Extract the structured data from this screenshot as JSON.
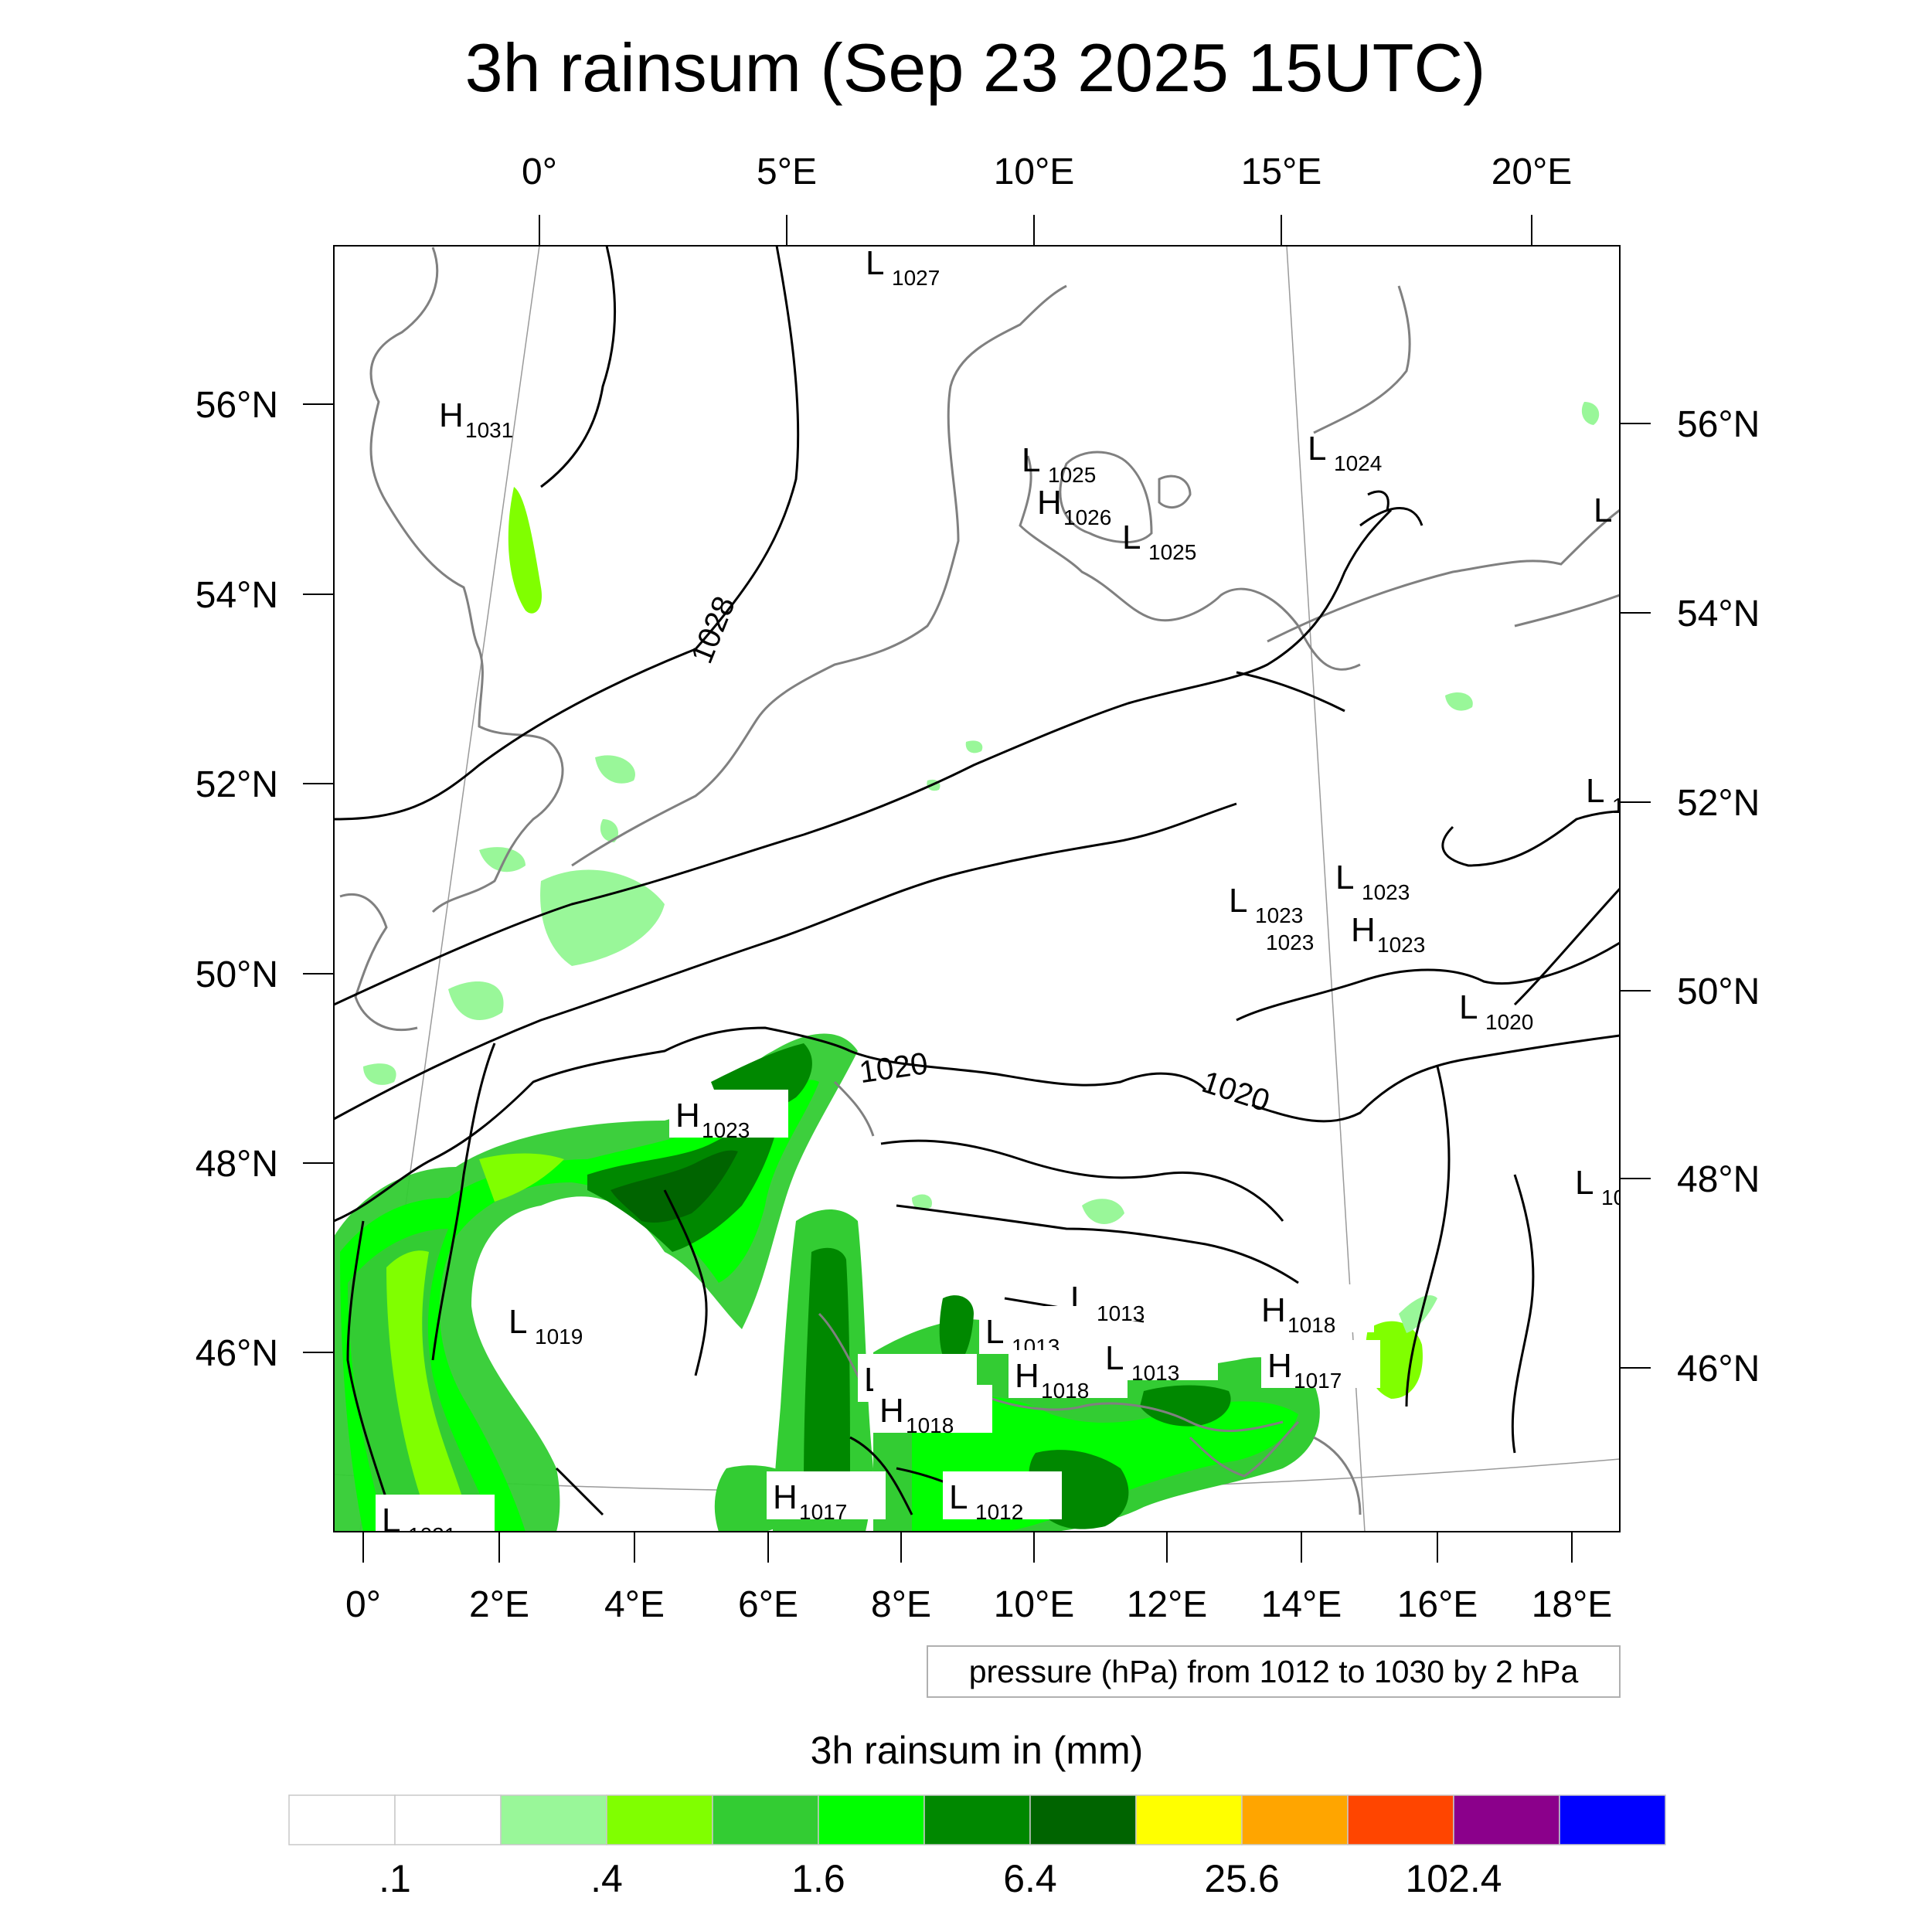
{
  "title": "3h rainsum (Sep 23 2025 15UTC)",
  "top_lon_labels": [
    "0°",
    "5°E",
    "10°E",
    "15°E",
    "20°E"
  ],
  "bottom_lon_labels": [
    "0°",
    "2°E",
    "4°E",
    "6°E",
    "8°E",
    "10°E",
    "12°E",
    "14°E",
    "16°E",
    "18°E"
  ],
  "left_lat_labels": [
    "56°N",
    "54°N",
    "52°N",
    "50°N",
    "48°N",
    "46°N"
  ],
  "right_lat_labels": [
    "56°N",
    "54°N",
    "52°N",
    "50°N",
    "48°N",
    "46°N"
  ],
  "contour_labels": [
    "1028",
    "1020",
    "1020"
  ],
  "pressure_note": "pressure (hPa) from 1012 to 1030 by 2 hPa",
  "colorbar": {
    "title": "3h rainsum in (mm)",
    "colors": [
      "#ffffff",
      "#ffffff",
      "#99f799",
      "#80ff00",
      "#33cc33",
      "#00ff00",
      "#008800",
      "#006400",
      "#ffff00",
      "#ffa500",
      "#ff4500",
      "#8b008b",
      "#0000ff"
    ],
    "tick_labels": [
      ".1",
      ".4",
      "1.6",
      "6.4",
      "25.6",
      "102.4"
    ]
  },
  "centers": [
    {
      "type": "L",
      "value": "1027"
    },
    {
      "type": "H",
      "value": "1031"
    },
    {
      "type": "L",
      "value": "1025"
    },
    {
      "type": "H",
      "value": "1026"
    },
    {
      "type": "L",
      "value": "1025"
    },
    {
      "type": "L",
      "value": "1024"
    },
    {
      "type": "L",
      "value": "1"
    },
    {
      "type": "L",
      "value": "1("
    },
    {
      "type": "L",
      "value": "1023"
    },
    {
      "type": "L",
      "value": "1023"
    },
    {
      "type": "",
      "value": "1023"
    },
    {
      "type": "H",
      "value": "1023"
    },
    {
      "type": "L",
      "value": "1020"
    },
    {
      "type": "H",
      "value": "1023"
    },
    {
      "type": "L",
      "value": "10"
    },
    {
      "type": "L",
      "value": "1019"
    },
    {
      "type": "L",
      "value": "1013"
    },
    {
      "type": "L",
      "value": "1013"
    },
    {
      "type": "H",
      "value": "1018"
    },
    {
      "type": "L",
      "value": "1013"
    },
    {
      "type": "H",
      "value": "1018"
    },
    {
      "type": "H",
      "value": "1018"
    },
    {
      "type": "L",
      "value": "1013"
    },
    {
      "type": "H",
      "value": "1017"
    },
    {
      "type": "H",
      "value": "1017"
    },
    {
      "type": "L",
      "value": "1012"
    },
    {
      "type": "L",
      "value": "1021"
    }
  ]
}
